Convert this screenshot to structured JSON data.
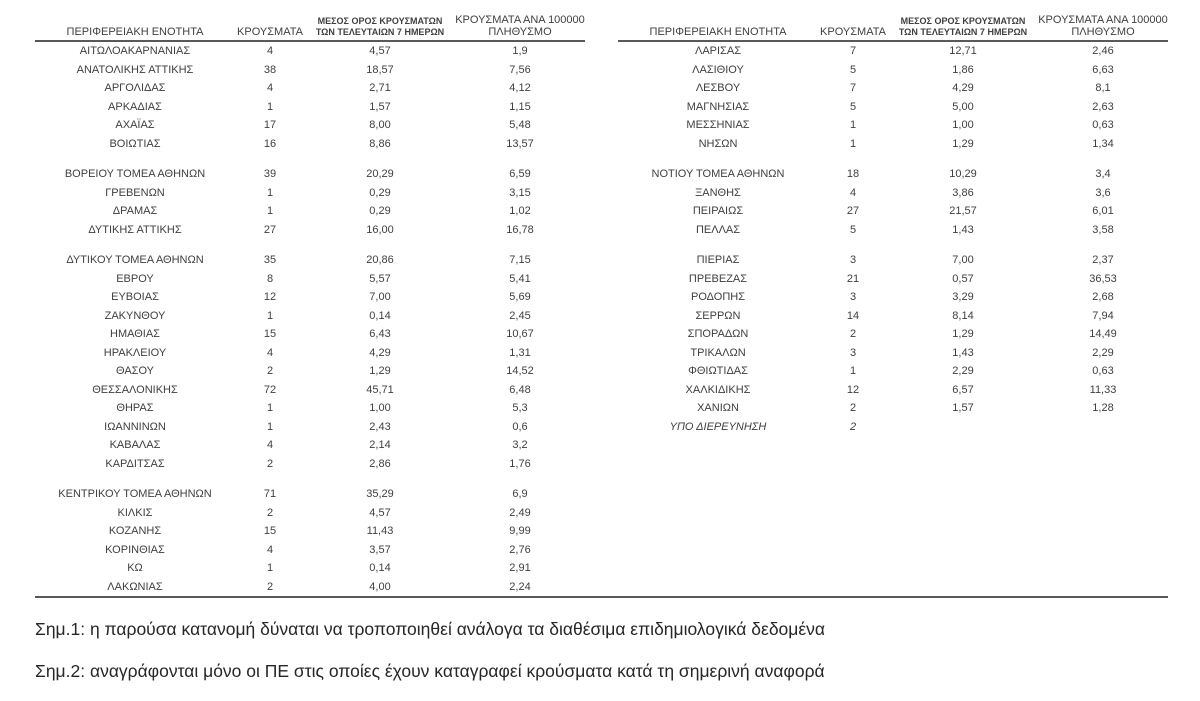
{
  "colors": {
    "rule": "#595959",
    "table_text": "#3f3f3f",
    "footnote_text": "#262626",
    "background": "#ffffff"
  },
  "table_headers": {
    "col1": "ΠΕΡΙΦΕΡΕΙΑΚΗ ΕΝΟΤΗΤΑ",
    "col2": "ΚΡΟΥΣΜΑΤΑ",
    "col3_line1": "ΜΕΣΟΣ ΟΡΟΣ ΚΡΟΥΣΜΑΤΩΝ",
    "col3_line2": "ΤΩΝ ΤΕΛΕΥΤΑΙΩΝ 7 ΗΜΕΡΩΝ",
    "col4_line1": "ΚΡΟΥΣΜΑΤΑ ΑΝΑ 100000",
    "col4_line2": "ΠΛΗΘΥΣΜΟ"
  },
  "left_table": {
    "italic_rows": [],
    "groups": [
      [
        [
          "ΑΙΤΩΛΟΑΚΑΡΝΑΝΙΑΣ",
          "4",
          "4,57",
          "1,9"
        ],
        [
          "ΑΝΑΤΟΛΙΚΗΣ ΑΤΤΙΚΗΣ",
          "38",
          "18,57",
          "7,56"
        ],
        [
          "ΑΡΓΟΛΙΔΑΣ",
          "4",
          "2,71",
          "4,12"
        ],
        [
          "ΑΡΚΑΔΙΑΣ",
          "1",
          "1,57",
          "1,15"
        ],
        [
          "ΑΧΑΪΑΣ",
          "17",
          "8,00",
          "5,48"
        ],
        [
          "ΒΟΙΩΤΙΑΣ",
          "16",
          "8,86",
          "13,57"
        ]
      ],
      [
        [
          "ΒΟΡΕΙΟΥ ΤΟΜΕΑ ΑΘΗΝΩΝ",
          "39",
          "20,29",
          "6,59"
        ],
        [
          "ΓΡΕΒΕΝΩΝ",
          "1",
          "0,29",
          "3,15"
        ],
        [
          "ΔΡΑΜΑΣ",
          "1",
          "0,29",
          "1,02"
        ],
        [
          "ΔΥΤΙΚΗΣ ΑΤΤΙΚΗΣ",
          "27",
          "16,00",
          "16,78"
        ]
      ],
      [
        [
          "ΔΥΤΙΚΟΥ ΤΟΜΕΑ ΑΘΗΝΩΝ",
          "35",
          "20,86",
          "7,15"
        ],
        [
          "ΕΒΡΟΥ",
          "8",
          "5,57",
          "5,41"
        ],
        [
          "ΕΥΒΟΙΑΣ",
          "12",
          "7,00",
          "5,69"
        ],
        [
          "ΖΑΚΥΝΘΟΥ",
          "1",
          "0,14",
          "2,45"
        ],
        [
          "ΗΜΑΘΙΑΣ",
          "15",
          "6,43",
          "10,67"
        ],
        [
          "ΗΡΑΚΛΕΙΟΥ",
          "4",
          "4,29",
          "1,31"
        ],
        [
          "ΘΑΣΟΥ",
          "2",
          "1,29",
          "14,52"
        ],
        [
          "ΘΕΣΣΑΛΟΝΙΚΗΣ",
          "72",
          "45,71",
          "6,48"
        ],
        [
          "ΘΗΡΑΣ",
          "1",
          "1,00",
          "5,3"
        ],
        [
          "ΙΩΑΝΝΙΝΩΝ",
          "1",
          "2,43",
          "0,6"
        ],
        [
          "ΚΑΒΑΛΑΣ",
          "4",
          "2,14",
          "3,2"
        ],
        [
          "ΚΑΡΔΙΤΣΑΣ",
          "2",
          "2,86",
          "1,76"
        ]
      ],
      [
        [
          "ΚΕΝΤΡΙΚΟΥ ΤΟΜΕΑ ΑΘΗΝΩΝ",
          "71",
          "35,29",
          "6,9"
        ],
        [
          "ΚΙΛΚΙΣ",
          "2",
          "4,57",
          "2,49"
        ],
        [
          "ΚΟΖΑΝΗΣ",
          "15",
          "11,43",
          "9,99"
        ],
        [
          "ΚΟΡΙΝΘΙΑΣ",
          "4",
          "3,57",
          "2,76"
        ],
        [
          "ΚΩ",
          "1",
          "0,14",
          "2,91"
        ],
        [
          "ΛΑΚΩΝΙΑΣ",
          "2",
          "4,00",
          "2,24"
        ]
      ]
    ]
  },
  "right_table": {
    "italic_rows": [
      "ΥΠΟ ΔΙΕΡΕΥΝΗΣΗ"
    ],
    "groups": [
      [
        [
          "ΛΑΡΙΣΑΣ",
          "7",
          "12,71",
          "2,46"
        ],
        [
          "ΛΑΣΙΘΙΟΥ",
          "5",
          "1,86",
          "6,63"
        ],
        [
          "ΛΕΣΒΟΥ",
          "7",
          "4,29",
          "8,1"
        ],
        [
          "ΜΑΓΝΗΣΙΑΣ",
          "5",
          "5,00",
          "2,63"
        ],
        [
          "ΜΕΣΣΗΝΙΑΣ",
          "1",
          "1,00",
          "0,63"
        ],
        [
          "ΝΗΣΩΝ",
          "1",
          "1,29",
          "1,34"
        ]
      ],
      [
        [
          "ΝΟΤΙΟΥ ΤΟΜΕΑ ΑΘΗΝΩΝ",
          "18",
          "10,29",
          "3,4"
        ],
        [
          "ΞΑΝΘΗΣ",
          "4",
          "3,86",
          "3,6"
        ],
        [
          "ΠΕΙΡΑΙΩΣ",
          "27",
          "21,57",
          "6,01"
        ],
        [
          "ΠΕΛΛΑΣ",
          "5",
          "1,43",
          "3,58"
        ]
      ],
      [
        [
          "ΠΙΕΡΙΑΣ",
          "3",
          "7,00",
          "2,37"
        ],
        [
          "ΠΡΕΒΕΖΑΣ",
          "21",
          "0,57",
          "36,53"
        ],
        [
          "ΡΟΔΟΠΗΣ",
          "3",
          "3,29",
          "2,68"
        ],
        [
          "ΣΕΡΡΩΝ",
          "14",
          "8,14",
          "7,94"
        ],
        [
          "ΣΠΟΡΑΔΩΝ",
          "2",
          "1,29",
          "14,49"
        ],
        [
          "ΤΡΙΚΑΛΩΝ",
          "3",
          "1,43",
          "2,29"
        ],
        [
          "ΦΘΙΩΤΙΔΑΣ",
          "1",
          "2,29",
          "0,63"
        ],
        [
          "ΧΑΛΚΙΔΙΚΗΣ",
          "12",
          "6,57",
          "11,33"
        ],
        [
          "ΧΑΝΙΩΝ",
          "2",
          "1,57",
          "1,28"
        ],
        [
          "ΥΠΟ ΔΙΕΡΕΥΝΗΣΗ",
          "2",
          "",
          ""
        ]
      ]
    ]
  },
  "footnotes": {
    "note1": "Σημ.1: η παρούσα κατανομή δύναται να τροποποιηθεί ανάλογα τα διαθέσιμα επιδημιολογικά δεδομένα",
    "note2": "Σημ.2: αναγράφονται μόνο οι ΠΕ στις οποίες έχουν καταγραφεί κρούσματα κατά τη σημερινή αναφορά"
  }
}
